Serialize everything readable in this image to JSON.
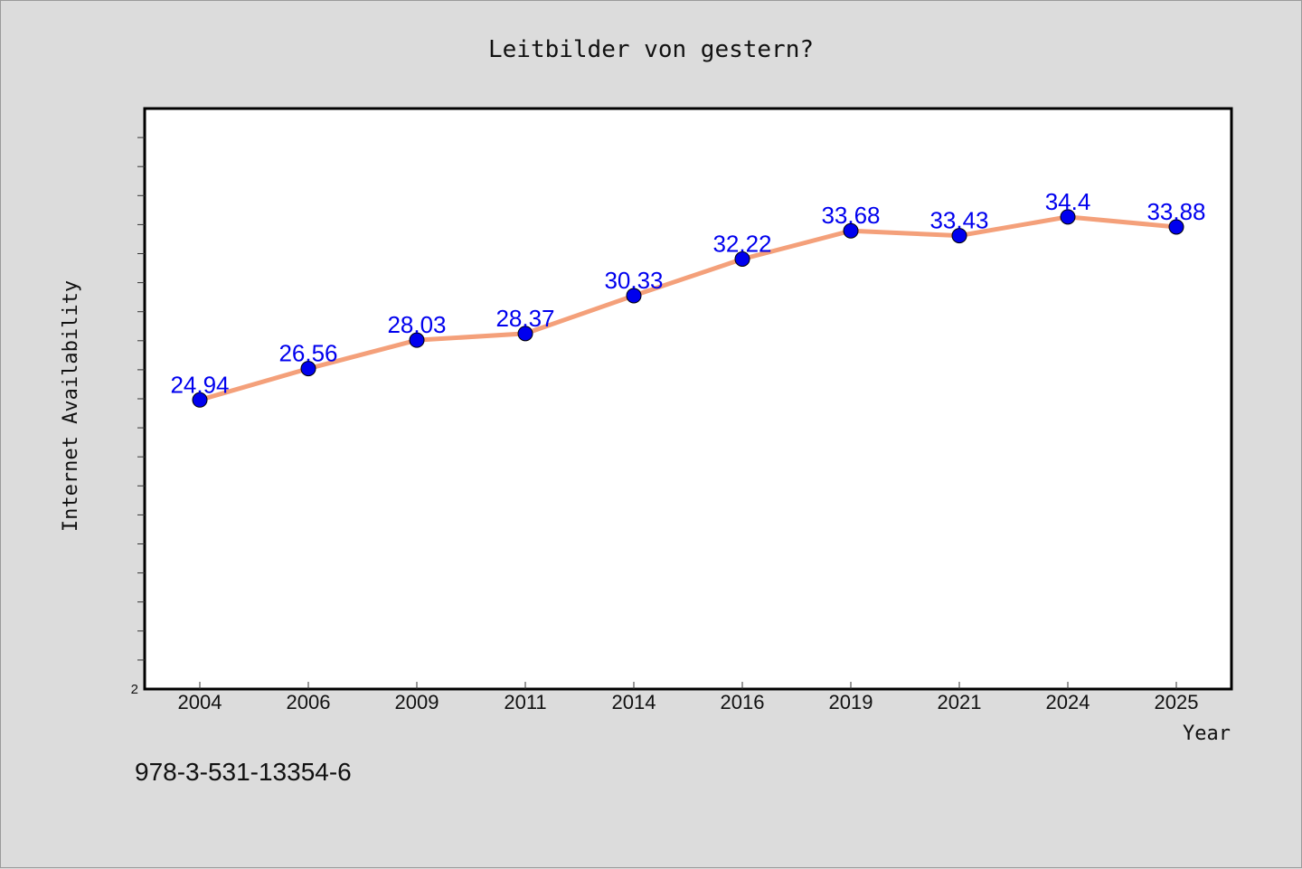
{
  "chart_data": {
    "type": "line",
    "title": "Leitbilder von gestern?",
    "xlabel": "Year",
    "ylabel": "Internet Availability",
    "categories": [
      "2004",
      "2006",
      "2009",
      "2011",
      "2014",
      "2016",
      "2019",
      "2021",
      "2024",
      "2025"
    ],
    "series": [
      {
        "values": [
          24.94,
          26.56,
          28.03,
          28.37,
          30.33,
          32.22,
          33.68,
          33.43,
          34.4,
          33.88
        ],
        "line_color": "#f4a07a",
        "marker_color": "#0000ee"
      }
    ],
    "data_labels": [
      "24.94",
      "26.56",
      "28.03",
      "28.37",
      "30.33",
      "32.22",
      "33.68",
      "33.43",
      "34.4",
      "33.88"
    ],
    "ylim": [
      10,
      40
    ],
    "y_tick_label": "2",
    "grid": false,
    "label_color": "#0000ee"
  },
  "footnote": "978-3-531-13354-6"
}
